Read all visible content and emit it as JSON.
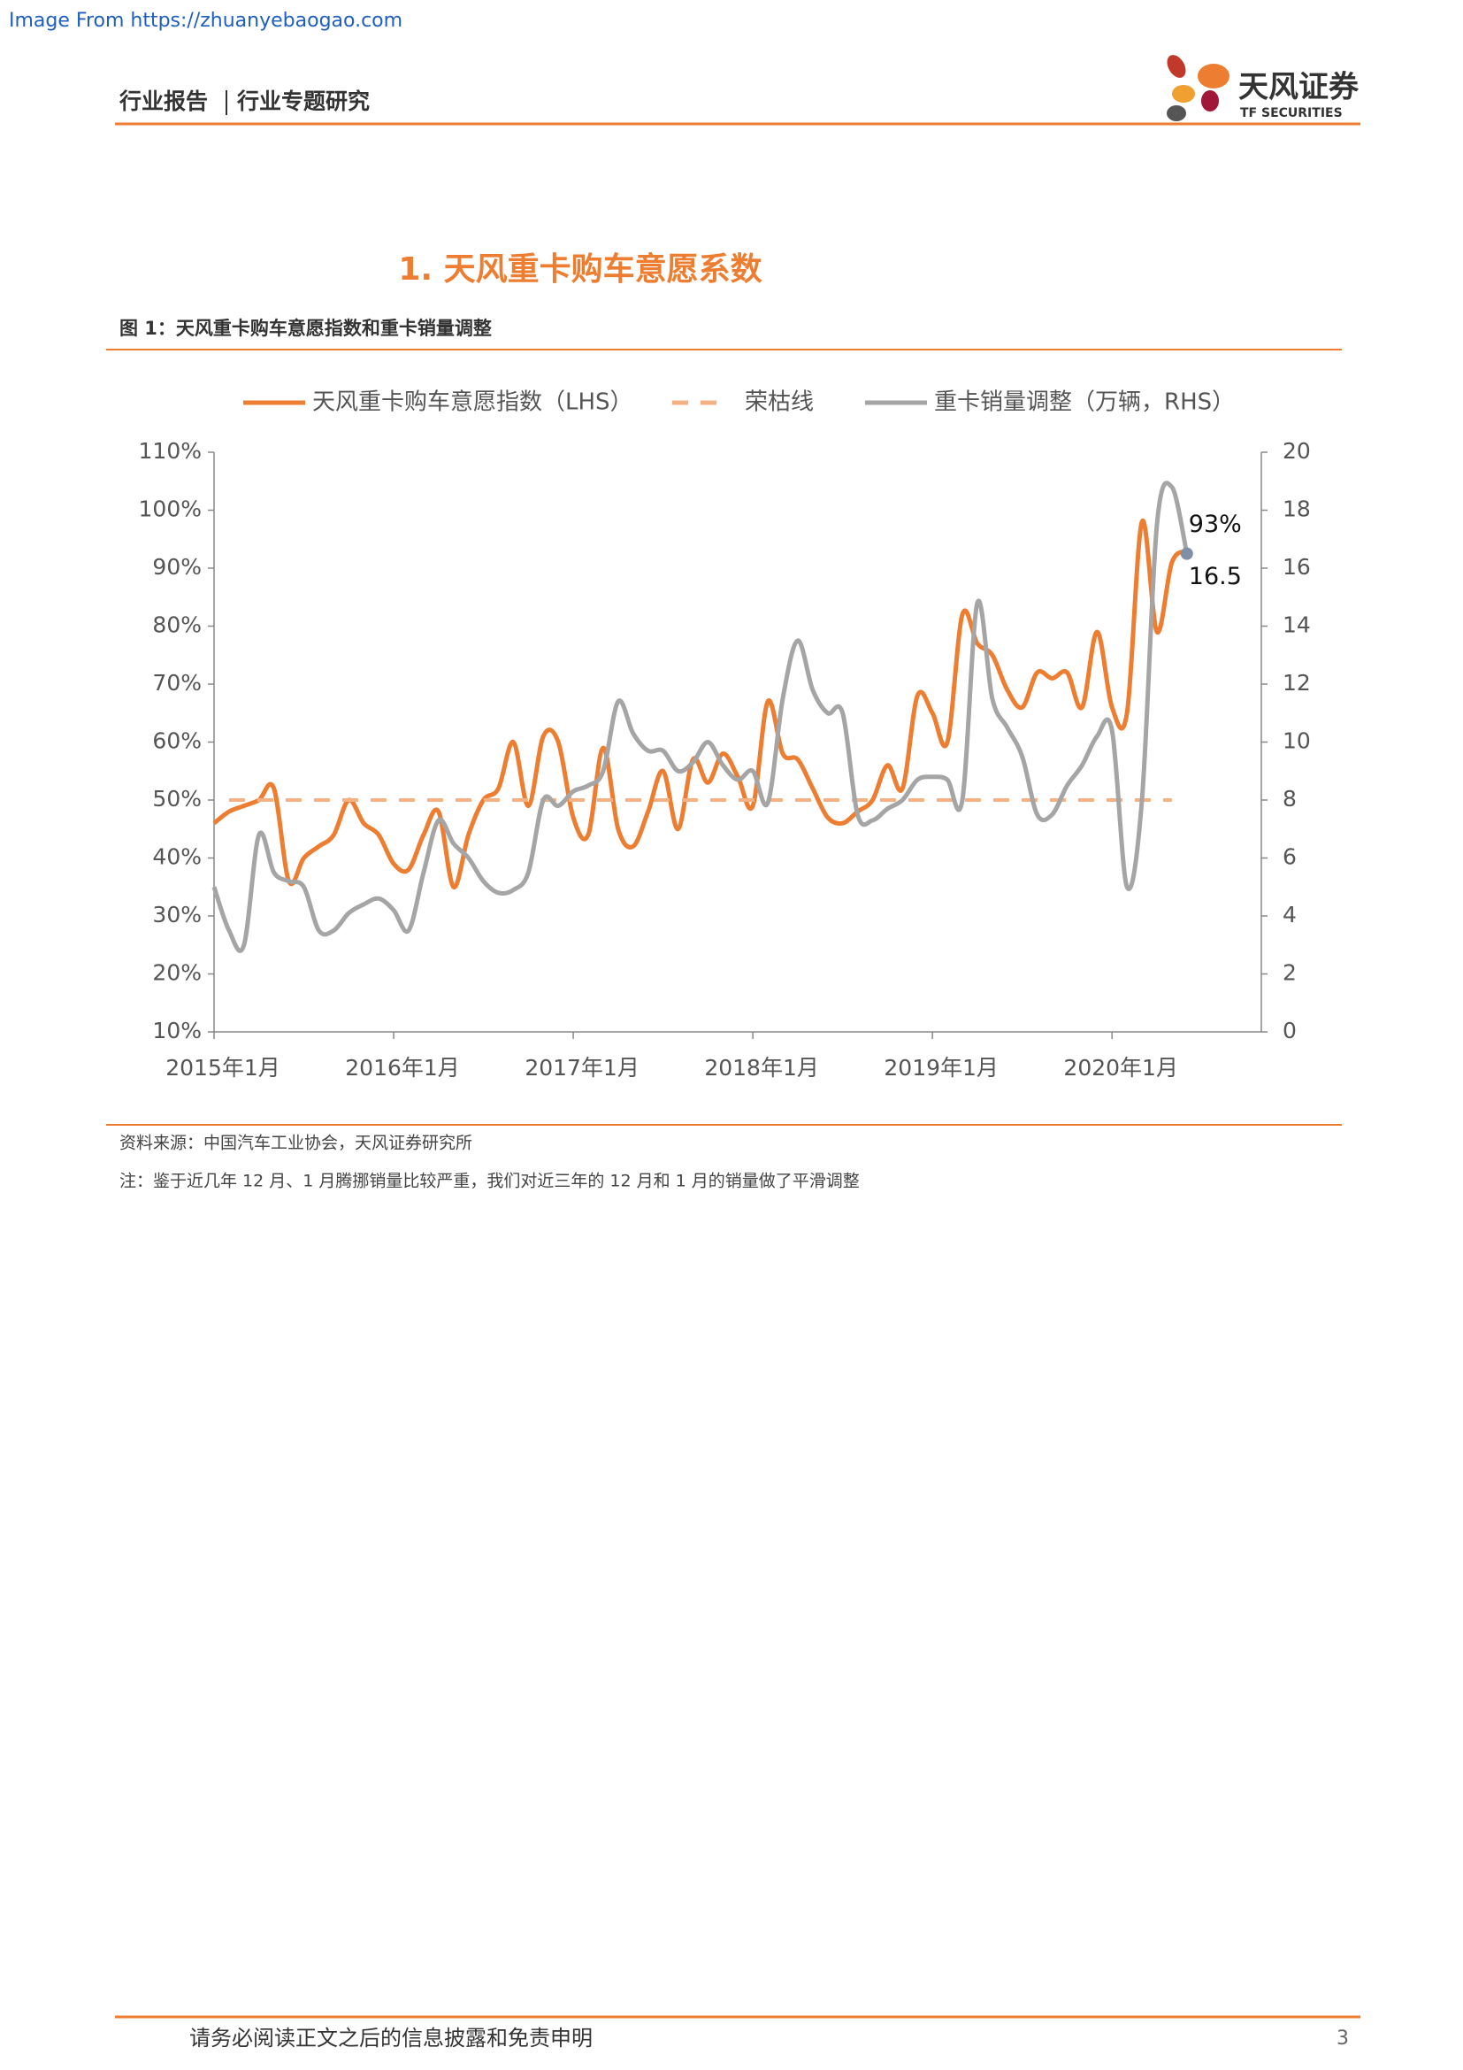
{
  "source_note": "Image From https://zhuanyebaogao.com",
  "header": {
    "breadcrumb": [
      "行业报告",
      "行业专题研究"
    ],
    "logo_name": "天风证券",
    "logo_en": "TF SECURITIES"
  },
  "section_title": "1. 天风重卡购车意愿系数",
  "figure_caption": "图 1：天风重卡购车意愿指数和重卡销量调整",
  "chart_data": {
    "type": "line",
    "categories": [
      "2015年1月",
      null,
      null,
      null,
      null,
      null,
      null,
      null,
      null,
      null,
      null,
      null,
      "2016年1月",
      null,
      null,
      null,
      null,
      null,
      null,
      null,
      null,
      null,
      null,
      null,
      "2017年1月",
      null,
      null,
      null,
      null,
      null,
      null,
      null,
      null,
      null,
      null,
      null,
      "2018年1月",
      null,
      null,
      null,
      null,
      null,
      null,
      null,
      null,
      null,
      null,
      null,
      "2019年1月",
      null,
      null,
      null,
      null,
      null,
      null,
      null,
      null,
      null,
      null,
      null,
      "2020年1月",
      null,
      null,
      null,
      null,
      null
    ],
    "series": [
      {
        "name": "天风重卡购车意愿指数（LHS）",
        "color": "#ED7D31",
        "axis": "y",
        "values": [
          46,
          48,
          49,
          50,
          52,
          36,
          40,
          42,
          44,
          50,
          46,
          44,
          39,
          38,
          44,
          48,
          35,
          44,
          50,
          52,
          60,
          49,
          61,
          60,
          47,
          44,
          59,
          45,
          42,
          48,
          55,
          45,
          57,
          53,
          58,
          54,
          49,
          67,
          58,
          57,
          52,
          47,
          46,
          48,
          50,
          56,
          52,
          68,
          65,
          60,
          82,
          77,
          75,
          69,
          66,
          72,
          71,
          72,
          66,
          79,
          66,
          65,
          98,
          79,
          91,
          93
        ],
        "value_labels": [
          null,
          null,
          null,
          null,
          null,
          null,
          null,
          null,
          null,
          null,
          null,
          null,
          null,
          null,
          null,
          null,
          null,
          null,
          null,
          null,
          null,
          null,
          null,
          null,
          null,
          null,
          null,
          null,
          null,
          null,
          null,
          null,
          null,
          null,
          null,
          null,
          null,
          null,
          null,
          null,
          null,
          null,
          null,
          null,
          null,
          null,
          null,
          null,
          null,
          null,
          null,
          null,
          null,
          null,
          null,
          null,
          null,
          null,
          null,
          null,
          null,
          null,
          null,
          null,
          null,
          "93%"
        ]
      },
      {
        "name": "荣枯线",
        "color": "#F4B183",
        "axis": "y",
        "dashed": true,
        "values": [
          null,
          50,
          50,
          50,
          50,
          50,
          50,
          50,
          50,
          50,
          50,
          50,
          50,
          50,
          50,
          50,
          50,
          50,
          50,
          50,
          50,
          50,
          50,
          50,
          50,
          50,
          50,
          50,
          50,
          50,
          50,
          50,
          50,
          50,
          50,
          50,
          50,
          50,
          50,
          50,
          50,
          50,
          50,
          50,
          50,
          50,
          50,
          50,
          50,
          50,
          50,
          50,
          50,
          50,
          50,
          50,
          50,
          50,
          50,
          50,
          50,
          50,
          50,
          50,
          50,
          null
        ]
      },
      {
        "name": "重卡销量调整（万辆，RHS）",
        "color": "#A5A5A5",
        "axis": "y2",
        "label_last": true,
        "marker_last": true,
        "values": [
          5.0,
          3.5,
          3.0,
          6.8,
          5.5,
          5.2,
          5.0,
          3.5,
          3.5,
          4.1,
          4.4,
          4.6,
          4.2,
          3.5,
          5.5,
          7.3,
          6.5,
          6.0,
          5.2,
          4.8,
          4.9,
          5.5,
          8.0,
          7.8,
          8.3,
          8.5,
          9.0,
          11.4,
          10.3,
          9.7,
          9.7,
          9.0,
          9.3,
          10.0,
          9.2,
          8.7,
          9.0,
          7.9,
          11.5,
          13.5,
          11.8,
          11.0,
          11.0,
          7.5,
          7.3,
          7.7,
          8.0,
          8.7,
          8.8,
          8.7,
          8.0,
          14.8,
          11.5,
          10.5,
          9.5,
          7.5,
          7.5,
          8.5,
          9.2,
          10.2,
          10.4,
          5.0,
          8.0,
          17.5,
          18.8,
          16.5
        ]
      }
    ],
    "ylim": [
      10,
      110
    ],
    "yticks": [
      {
        "value": 10,
        "label": "10%"
      },
      {
        "value": 20,
        "label": "20%"
      },
      {
        "value": 30,
        "label": "30%"
      },
      {
        "value": 40,
        "label": "40%"
      },
      {
        "value": 50,
        "label": "50%"
      },
      {
        "value": 60,
        "label": "60%"
      },
      {
        "value": 70,
        "label": "70%"
      },
      {
        "value": 80,
        "label": "80%"
      },
      {
        "value": 90,
        "label": "90%"
      },
      {
        "value": 100,
        "label": "100%"
      },
      {
        "value": 110,
        "label": "110%"
      }
    ],
    "y2lim": [
      0,
      20
    ],
    "y2ticks": [
      0,
      2,
      4,
      6,
      8,
      10,
      12,
      14,
      16,
      18,
      20
    ],
    "legend": "top",
    "grid": false
  },
  "notes": [
    "资料来源：中国汽车工业协会，天风证券研究所",
    "注：鉴于近几年 12 月、1 月腾挪销量比较严重，我们对近三年的 12 月和 1 月的销量做了平滑调整"
  ],
  "footer": {
    "disclaimer": "请务必阅读正文之后的信息披露和免责申明",
    "page_number": "3"
  }
}
